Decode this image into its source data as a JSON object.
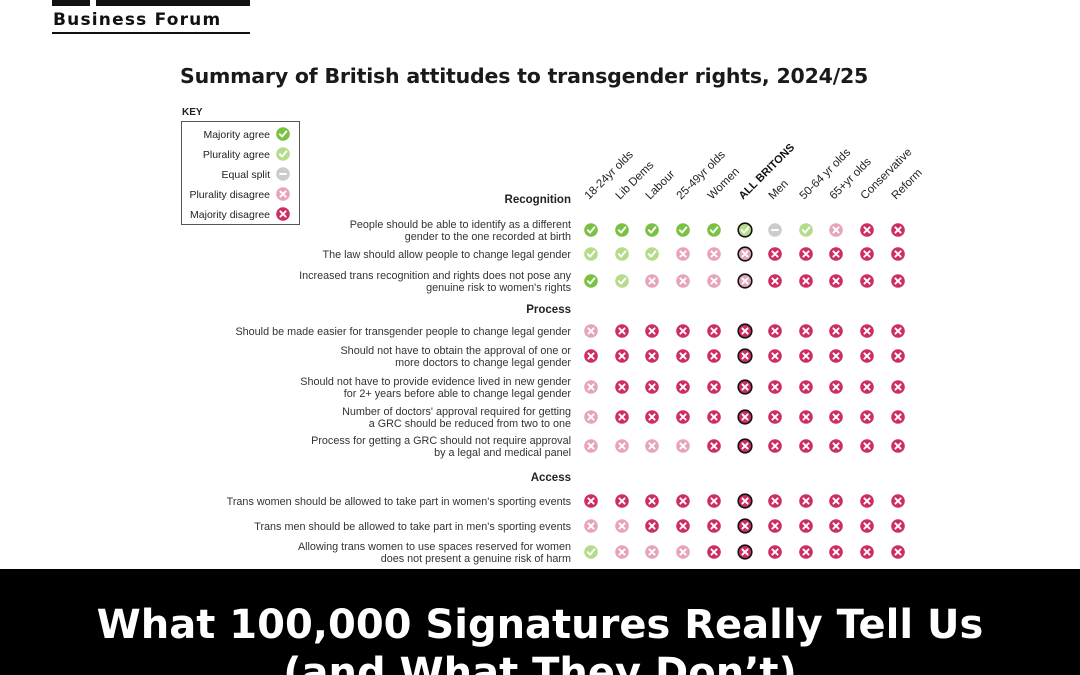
{
  "logo": {
    "text": "Business Forum"
  },
  "chart_data": {
    "type": "table",
    "title": "Summary of British attitudes to transgender rights, 2024/25",
    "key": {
      "title": "KEY",
      "items": [
        {
          "code": "MA",
          "label": "Majority agree",
          "color": "#7ac142"
        },
        {
          "code": "PA",
          "label": "Plurality agree",
          "color": "#b5dc8a"
        },
        {
          "code": "ES",
          "label": "Equal split",
          "color": "#cccccc"
        },
        {
          "code": "PD",
          "label": "Plurality disagree",
          "color": "#e7a3bc"
        },
        {
          "code": "MD",
          "label": "Majority disagree",
          "color": "#cc2d63"
        }
      ]
    },
    "columns": [
      "18-24yr olds",
      "Lib Dems",
      "Labour",
      "25-49yr olds",
      "Women",
      "ALL BRITONS",
      "Men",
      "50-64 yr olds",
      "65+yr olds",
      "Conservative",
      "Reform"
    ],
    "highlight_column": "ALL BRITONS",
    "sections": [
      {
        "name": "Recognition",
        "rows": [
          {
            "label": [
              "People should be able to identify as a different",
              "gender to the one recorded at birth"
            ],
            "values": [
              "MA",
              "MA",
              "MA",
              "MA",
              "MA",
              "PA",
              "ES",
              "PA",
              "PD",
              "MD",
              "MD"
            ]
          },
          {
            "label": [
              "The law should allow people to change legal gender"
            ],
            "values": [
              "PA",
              "PA",
              "PA",
              "PD",
              "PD",
              "PD",
              "MD",
              "MD",
              "MD",
              "MD",
              "MD"
            ]
          },
          {
            "label": [
              "Increased trans recognition and rights does not pose any",
              "genuine risk to women's rights"
            ],
            "values": [
              "MA",
              "PA",
              "PD",
              "PD",
              "PD",
              "PD",
              "MD",
              "MD",
              "MD",
              "MD",
              "MD"
            ]
          }
        ]
      },
      {
        "name": "Process",
        "rows": [
          {
            "label": [
              "Should be made easier for transgender people to change legal gender"
            ],
            "values": [
              "PD",
              "MD",
              "MD",
              "MD",
              "MD",
              "MD",
              "MD",
              "MD",
              "MD",
              "MD",
              "MD"
            ]
          },
          {
            "label": [
              "Should not have to obtain the approval of one or",
              "more doctors to change legal gender"
            ],
            "values": [
              "MD",
              "MD",
              "MD",
              "MD",
              "MD",
              "MD",
              "MD",
              "MD",
              "MD",
              "MD",
              "MD"
            ]
          },
          {
            "label": [
              "Should not have to provide evidence lived in new gender",
              "for 2+ years before able to change legal gender"
            ],
            "values": [
              "PD",
              "MD",
              "MD",
              "MD",
              "MD",
              "MD",
              "MD",
              "MD",
              "MD",
              "MD",
              "MD"
            ]
          },
          {
            "label": [
              "Number of doctors' approval required for getting",
              "a GRC should be reduced from two to one"
            ],
            "values": [
              "PD",
              "MD",
              "MD",
              "MD",
              "MD",
              "MD",
              "MD",
              "MD",
              "MD",
              "MD",
              "MD"
            ]
          },
          {
            "label": [
              "Process for getting a GRC should not require approval",
              "by a legal and medical panel"
            ],
            "values": [
              "PD",
              "PD",
              "PD",
              "PD",
              "MD",
              "MD",
              "MD",
              "MD",
              "MD",
              "MD",
              "MD"
            ]
          }
        ]
      },
      {
        "name": "Access",
        "rows": [
          {
            "label": [
              "Trans women should be allowed to take part in women's sporting events"
            ],
            "values": [
              "MD",
              "MD",
              "MD",
              "MD",
              "MD",
              "MD",
              "MD",
              "MD",
              "MD",
              "MD",
              "MD"
            ]
          },
          {
            "label": [
              "Trans men should be allowed to take part in men's sporting events"
            ],
            "values": [
              "PD",
              "PD",
              "MD",
              "MD",
              "MD",
              "MD",
              "MD",
              "MD",
              "MD",
              "MD",
              "MD"
            ]
          },
          {
            "label": [
              "Allowing trans women to use spaces reserved for women",
              "does not present a genuine risk of harm"
            ],
            "values": [
              "PA",
              "PD",
              "PD",
              "PD",
              "MD",
              "MD",
              "MD",
              "MD",
              "MD",
              "MD",
              "MD"
            ]
          }
        ]
      }
    ]
  },
  "banner": {
    "line1": "What 100,000 Signatures Really Tell Us",
    "line2": "(and What They Don’t)"
  }
}
